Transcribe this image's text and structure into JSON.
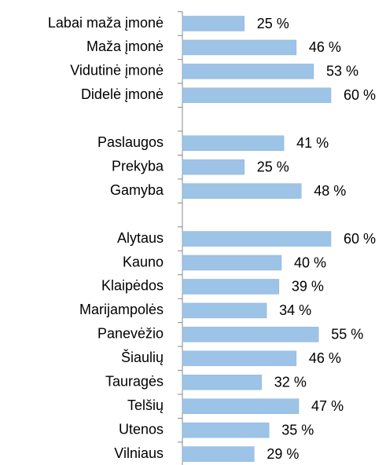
{
  "chart_data": {
    "type": "bar",
    "orientation": "horizontal",
    "categories": [
      "Labai maža įmonė",
      "Maža įmonė",
      "Vidutinė įmonė",
      "Didelė įmonė",
      null,
      "Paslaugos",
      "Prekyba",
      "Gamyba",
      null,
      "Alytaus",
      "Kauno",
      "Klaipėdos",
      "Marijampolės",
      "Panevėžio",
      "Šiaulių",
      "Tauragės",
      "Telšių",
      "Utenos",
      "Vilniaus"
    ],
    "values": [
      25,
      46,
      53,
      60,
      null,
      41,
      25,
      48,
      null,
      60,
      40,
      39,
      34,
      55,
      46,
      32,
      47,
      35,
      29
    ],
    "value_labels": [
      "25 %",
      "46 %",
      "53 %",
      "60 %",
      null,
      "41 %",
      "25 %",
      "48 %",
      null,
      "60 %",
      "40 %",
      "39 %",
      "34 %",
      "55 %",
      "46 %",
      "32 %",
      "47 %",
      "35 %",
      "29 %"
    ],
    "color": "#9dc3e6",
    "xlim": [
      0,
      60
    ]
  }
}
